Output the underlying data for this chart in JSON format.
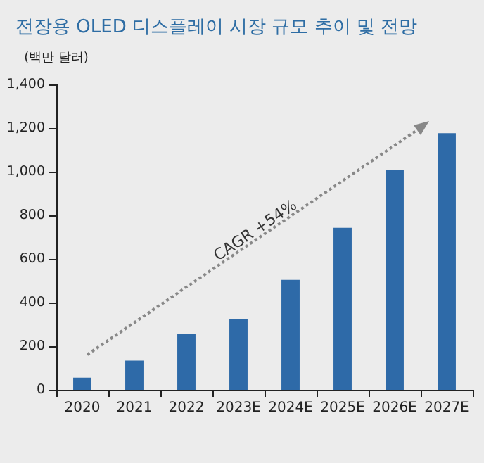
{
  "chart_data": {
    "type": "bar",
    "title": "전장용 OLED 디스플레이 시장 규모 추이 및 전망",
    "ylabel": "(백만 달러)",
    "categories": [
      "2020",
      "2021",
      "2022",
      "2023E",
      "2024E",
      "2025E",
      "2026E",
      "2027E"
    ],
    "values": [
      56,
      134,
      258,
      323,
      504,
      743,
      1008,
      1177
    ],
    "color": "#2e6aa8",
    "ylim": [
      0,
      1400
    ],
    "yticks": [
      0,
      200,
      400,
      600,
      800,
      {
        "value": 1000,
        "label": "1,000"
      },
      {
        "value": 1200,
        "label": "1,200"
      },
      {
        "value": 1400,
        "label": "1,400"
      }
    ],
    "grid": false,
    "annotations": [
      "CAGR +54%"
    ]
  }
}
